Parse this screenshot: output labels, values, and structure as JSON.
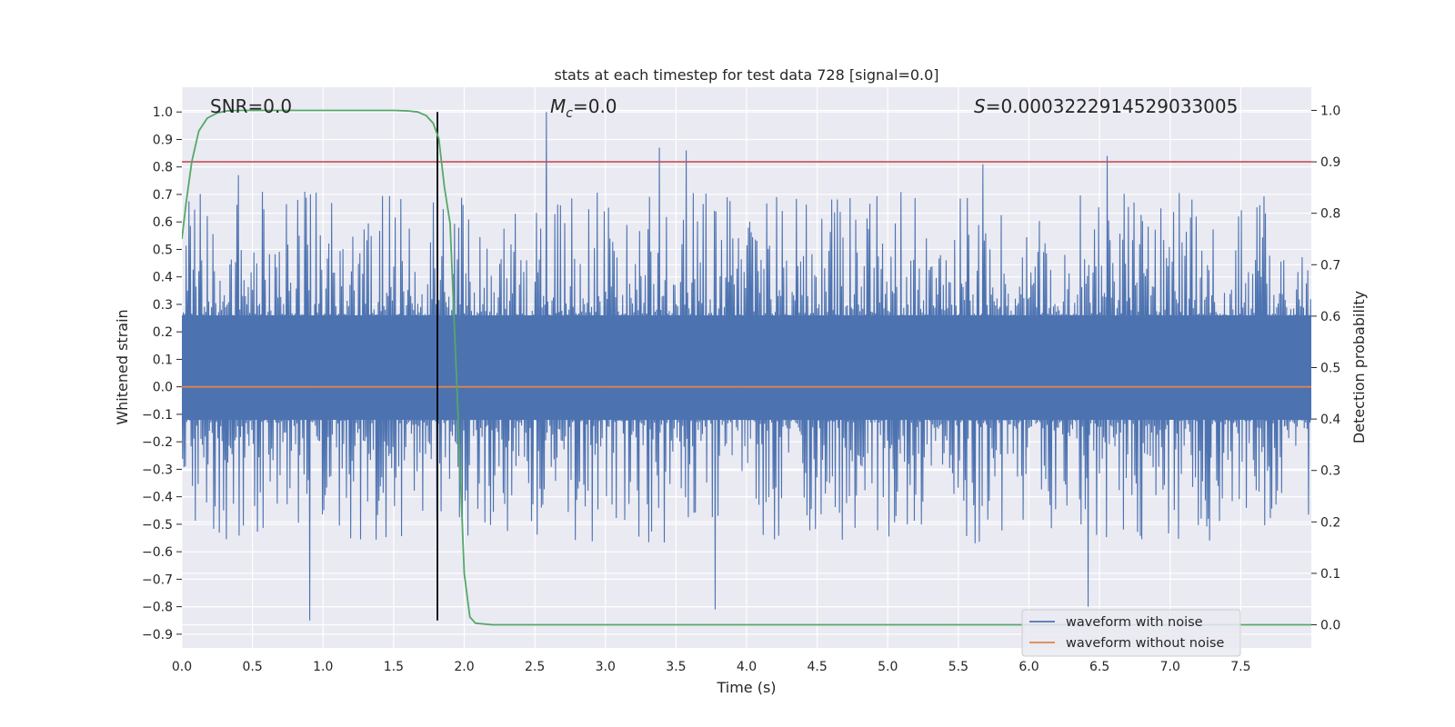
{
  "chart_data": {
    "type": "line",
    "title": "stats at each timestep for test data 728 [signal=0.0]",
    "xlabel": "Time (s)",
    "ylabel": "Whitened strain",
    "y2label": "Detection probability",
    "xlim": [
      0.0,
      8.0
    ],
    "ylim": [
      -0.95,
      1.09
    ],
    "y2lim": [
      -0.045,
      1.045
    ],
    "xticks": [
      0.0,
      0.5,
      1.0,
      1.5,
      2.0,
      2.5,
      3.0,
      3.5,
      4.0,
      4.5,
      5.0,
      5.5,
      6.0,
      6.5,
      7.0,
      7.5
    ],
    "xtick_labels": [
      "0.0",
      "0.5",
      "1.0",
      "1.5",
      "2.0",
      "2.5",
      "3.0",
      "3.5",
      "4.0",
      "4.5",
      "5.0",
      "5.5",
      "6.0",
      "6.5",
      "7.0",
      "7.5"
    ],
    "yticks": [
      1.0,
      0.9,
      0.8,
      0.7,
      0.6,
      0.5,
      0.4,
      0.3,
      0.2,
      0.1,
      0.0,
      -0.1,
      -0.2,
      -0.3,
      -0.4,
      -0.5,
      -0.6,
      -0.7,
      -0.8,
      -0.9
    ],
    "ytick_labels": [
      "1.0",
      "0.9",
      "0.8",
      "0.7",
      "0.6",
      "0.5",
      "0.4",
      "0.3",
      "0.2",
      "0.1",
      "0.0",
      "−0.1",
      "−0.2",
      "−0.3",
      "−0.4",
      "−0.5",
      "−0.6",
      "−0.7",
      "−0.8",
      "−0.9"
    ],
    "y2ticks": [
      1.0,
      0.9,
      0.8,
      0.7,
      0.6,
      0.5,
      0.4,
      0.3,
      0.2,
      0.1,
      0.0
    ],
    "y2tick_labels": [
      "1.0",
      "0.9",
      "0.8",
      "0.7",
      "0.6",
      "0.5",
      "0.4",
      "0.3",
      "0.2",
      "0.1",
      "0.0"
    ],
    "annotations": {
      "snr": "SNR=0.0",
      "mc_symbol": "M",
      "mc_sub": "c",
      "mc_value": "=0.0",
      "s_symbol": "S",
      "s_value": "=0.0003222914529033005"
    },
    "series": [
      {
        "name": "waveform with noise",
        "color": "#4c72b0",
        "axis": "left",
        "kind": "noise",
        "n_points": 1600,
        "band_lower": -0.12,
        "band_upper": 0.26,
        "peak_max": 1.0,
        "peak_min": -0.85,
        "notable_peaks": [
          {
            "t": 2.58,
            "v": 1.0
          },
          {
            "t": 3.38,
            "v": 0.87
          },
          {
            "t": 3.57,
            "v": 0.86
          },
          {
            "t": 0.4,
            "v": 0.77
          },
          {
            "t": 5.67,
            "v": 0.81
          },
          {
            "t": 6.55,
            "v": 0.84
          },
          {
            "t": 0.9,
            "v": -0.85
          },
          {
            "t": 6.42,
            "v": -0.8
          },
          {
            "t": 3.77,
            "v": -0.81
          }
        ]
      },
      {
        "name": "waveform without noise",
        "color": "#dd8452",
        "axis": "left",
        "x": [
          0.0,
          8.0
        ],
        "values": [
          0.0,
          0.0
        ]
      },
      {
        "name": "detection probability",
        "color": "#55a868",
        "axis": "right",
        "x": [
          0.0,
          0.03,
          0.07,
          0.12,
          0.18,
          0.25,
          0.32,
          0.4,
          0.55,
          0.8,
          1.2,
          1.5,
          1.6,
          1.67,
          1.73,
          1.78,
          1.82,
          1.86,
          1.9,
          1.95,
          2.0,
          2.04,
          2.08,
          2.2,
          2.5,
          3.0,
          4.0,
          5.0,
          6.0,
          7.0,
          8.0
        ],
        "values": [
          0.75,
          0.82,
          0.9,
          0.96,
          0.985,
          0.995,
          0.999,
          1.0,
          1.0,
          1.0,
          1.0,
          1.0,
          0.999,
          0.997,
          0.99,
          0.975,
          0.945,
          0.85,
          0.78,
          0.45,
          0.1,
          0.015,
          0.003,
          0.0,
          0.0,
          0.0,
          0.0,
          0.0,
          0.0,
          0.0,
          0.0
        ]
      }
    ],
    "threshold": {
      "axis": "right",
      "value": 0.9,
      "color": "#c44e52"
    },
    "vline": {
      "x": 1.81,
      "ymin": -0.85,
      "ymax": 1.0,
      "color": "#000000"
    },
    "legend": {
      "position": "bottom-right",
      "entries": [
        {
          "label": "waveform with noise",
          "color": "#4c72b0"
        },
        {
          "label": "waveform without noise",
          "color": "#dd8452"
        }
      ]
    },
    "grid": true
  }
}
